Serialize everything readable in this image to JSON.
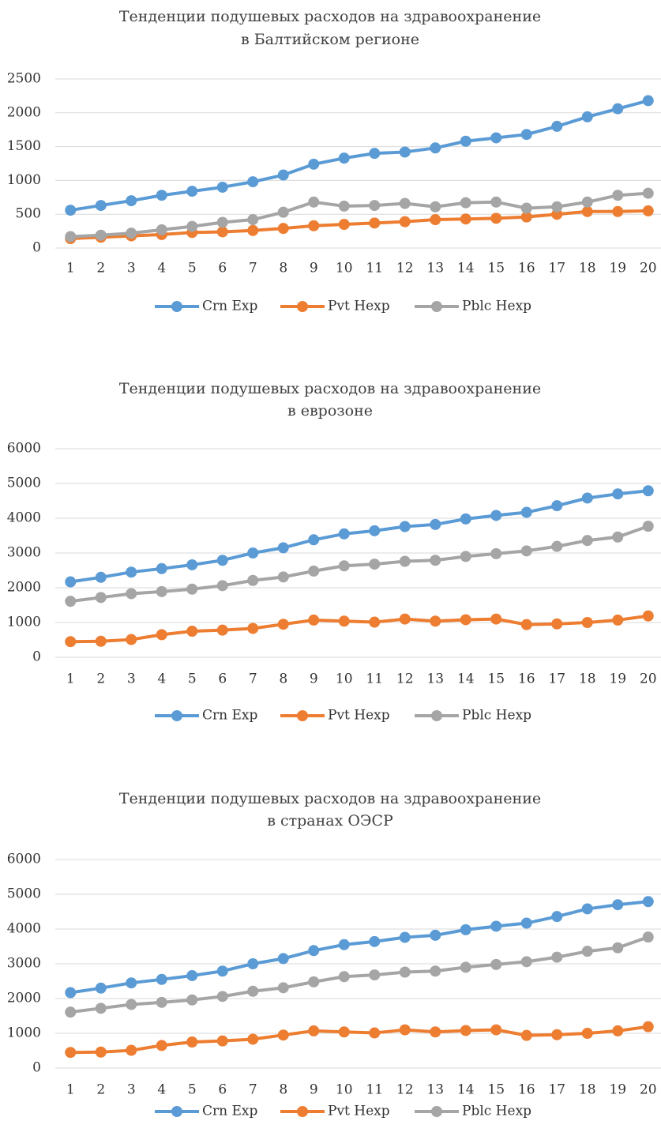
{
  "chart_data": [
    {
      "type": "line",
      "title": [
        "Тенденции подушевых расходов на здравоохранение",
        "в Балтийском регионе"
      ],
      "categories": [
        1,
        2,
        3,
        4,
        5,
        6,
        7,
        8,
        9,
        10,
        11,
        12,
        13,
        14,
        15,
        16,
        17,
        18,
        19,
        20
      ],
      "ylim": [
        0,
        2500
      ],
      "yticks": [
        0,
        500,
        1000,
        1500,
        2000,
        2500
      ],
      "grid": true,
      "legend": "bottom",
      "series": [
        {
          "name": "Crn Exp",
          "color": "#5b9bd5",
          "values": [
            560,
            630,
            700,
            780,
            840,
            900,
            980,
            1080,
            1240,
            1330,
            1400,
            1420,
            1480,
            1580,
            1630,
            1680,
            1800,
            1940,
            2060,
            2180
          ]
        },
        {
          "name": "Pvt Hexp",
          "color": "#ed7d31",
          "values": [
            140,
            160,
            180,
            200,
            230,
            240,
            260,
            290,
            330,
            350,
            370,
            390,
            420,
            430,
            440,
            460,
            500,
            540,
            540,
            550
          ]
        },
        {
          "name": "Pblc Hexp",
          "color": "#a5a5a5",
          "values": [
            170,
            190,
            220,
            270,
            320,
            380,
            420,
            530,
            680,
            620,
            630,
            660,
            610,
            670,
            680,
            590,
            610,
            680,
            780,
            810
          ]
        }
      ]
    },
    {
      "type": "line",
      "title": [
        "Тенденции подушевых расходов на здравоохранение",
        "в еврозоне"
      ],
      "categories": [
        1,
        2,
        3,
        4,
        5,
        6,
        7,
        8,
        9,
        10,
        11,
        12,
        13,
        14,
        15,
        16,
        17,
        18,
        19,
        20
      ],
      "ylim": [
        0,
        6000
      ],
      "yticks": [
        0,
        1000,
        2000,
        3000,
        4000,
        5000,
        6000
      ],
      "grid": true,
      "legend": "bottom",
      "series": [
        {
          "name": "Crn Exp",
          "color": "#5b9bd5",
          "values": [
            2170,
            2300,
            2450,
            2550,
            2660,
            2790,
            3000,
            3150,
            3380,
            3550,
            3640,
            3760,
            3820,
            3980,
            4080,
            4170,
            4360,
            4580,
            4700,
            4790
          ]
        },
        {
          "name": "Pvt Hexp",
          "color": "#ed7d31",
          "values": [
            450,
            460,
            510,
            650,
            750,
            780,
            830,
            950,
            1070,
            1040,
            1010,
            1100,
            1040,
            1080,
            1100,
            940,
            960,
            1000,
            1070,
            1190
          ]
        },
        {
          "name": "Pblc Hexp",
          "color": "#a5a5a5",
          "values": [
            1610,
            1720,
            1830,
            1890,
            1960,
            2060,
            2210,
            2310,
            2480,
            2630,
            2680,
            2760,
            2790,
            2900,
            2980,
            3060,
            3190,
            3360,
            3460,
            3770
          ]
        }
      ]
    },
    {
      "type": "line",
      "title": [
        "Тенденции подушевых расходов на здравоохранение",
        "в странах ОЭСР"
      ],
      "categories": [
        1,
        2,
        3,
        4,
        5,
        6,
        7,
        8,
        9,
        10,
        11,
        12,
        13,
        14,
        15,
        16,
        17,
        18,
        19,
        20
      ],
      "ylim": [
        0,
        6000
      ],
      "yticks": [
        0,
        1000,
        2000,
        3000,
        4000,
        5000,
        6000
      ],
      "grid": true,
      "legend": "bottom",
      "series": [
        {
          "name": "Crn Exp",
          "color": "#5b9bd5",
          "values": [
            2170,
            2300,
            2450,
            2550,
            2660,
            2790,
            3000,
            3150,
            3380,
            3550,
            3640,
            3760,
            3820,
            3980,
            4080,
            4170,
            4360,
            4580,
            4700,
            4790
          ]
        },
        {
          "name": "Pvt Hexp",
          "color": "#ed7d31",
          "values": [
            450,
            460,
            510,
            650,
            750,
            780,
            830,
            950,
            1070,
            1040,
            1010,
            1100,
            1040,
            1080,
            1100,
            940,
            960,
            1000,
            1070,
            1190
          ]
        },
        {
          "name": "Pblc Hexp",
          "color": "#a5a5a5",
          "values": [
            1610,
            1720,
            1830,
            1890,
            1960,
            2060,
            2210,
            2310,
            2480,
            2630,
            2680,
            2760,
            2790,
            2900,
            2980,
            3060,
            3190,
            3360,
            3460,
            3770
          ]
        }
      ]
    }
  ]
}
